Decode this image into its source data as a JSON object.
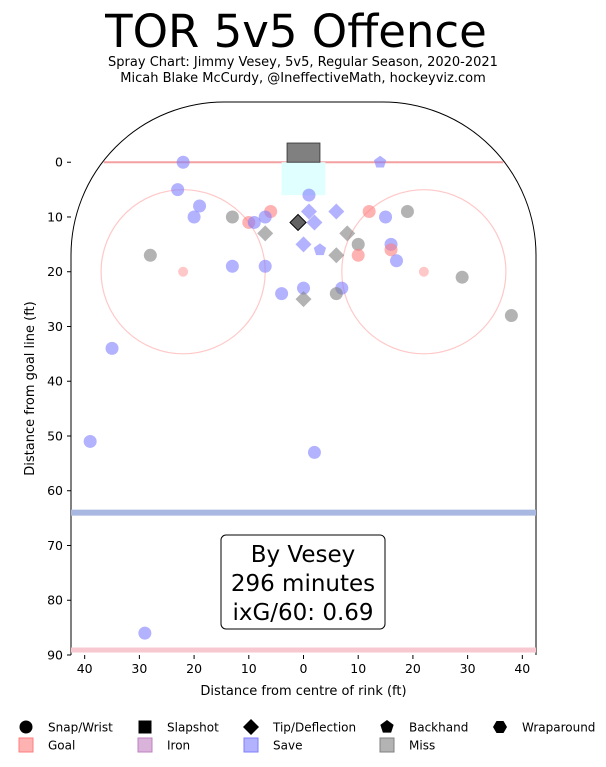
{
  "chart_data": {
    "type": "scatter",
    "title": "TOR 5v5 Offence",
    "subtitle_1": "Spray Chart: Jimmy Vesey, 5v5, Regular Season, 2020-2021",
    "subtitle_2": "Micah Blake McCurdy, @IneffectiveMath, hockeyviz.com",
    "xlabel": "Distance from centre of rink (ft)",
    "ylabel": "Distance from goal line (ft)",
    "xlim": [
      -42.5,
      42.5
    ],
    "ylim": [
      -11,
      90
    ],
    "x_ticks": [
      -40,
      -30,
      -20,
      -10,
      0,
      10,
      20,
      30,
      40
    ],
    "x_tick_labels": [
      "40",
      "30",
      "20",
      "10",
      "0",
      "10",
      "20",
      "30",
      "40"
    ],
    "y_ticks": [
      0,
      10,
      20,
      30,
      40,
      50,
      60,
      70,
      80,
      90
    ],
    "y_tick_labels": [
      "0",
      "10",
      "20",
      "30",
      "40",
      "50",
      "60",
      "70",
      "80",
      "90"
    ],
    "annotation": {
      "line1": "By Vesey",
      "line2": "296 minutes",
      "line3": "ixG/60: 0.69"
    },
    "legend": {
      "shapes": [
        {
          "key": "wrist",
          "label": "Snap/Wrist"
        },
        {
          "key": "slap",
          "label": "Slapshot"
        },
        {
          "key": "tip",
          "label": "Tip/Deflection"
        },
        {
          "key": "backhand",
          "label": "Backhand"
        },
        {
          "key": "wrap",
          "label": "Wraparound"
        }
      ],
      "outcomes": [
        {
          "key": "goal",
          "label": "Goal",
          "color": "#ff7f7f"
        },
        {
          "key": "iron",
          "label": "Iron",
          "color": "#c080c0"
        },
        {
          "key": "save",
          "label": "Save",
          "color": "#7f7fff"
        },
        {
          "key": "miss",
          "label": "Miss",
          "color": "#808080"
        }
      ]
    },
    "colors": {
      "goal": "#ff7f7f",
      "save": "#7f7fff",
      "miss": "#808080",
      "iron": "#c080c0",
      "goal_line": "#f4a0a0",
      "blue_line": "#a8b8e0",
      "circle": "#ffc8c8",
      "crease": "#e0ffff"
    },
    "shots": [
      {
        "x": -22,
        "y": 0,
        "shape": "wrist",
        "outcome": "save"
      },
      {
        "x": 14,
        "y": 0,
        "shape": "backhand",
        "outcome": "save"
      },
      {
        "x": -23,
        "y": 5,
        "shape": "wrist",
        "outcome": "save"
      },
      {
        "x": 1,
        "y": 6,
        "shape": "wrist",
        "outcome": "save"
      },
      {
        "x": -19,
        "y": 8,
        "shape": "wrist",
        "outcome": "save"
      },
      {
        "x": -20,
        "y": 10,
        "shape": "wrist",
        "outcome": "save"
      },
      {
        "x": -13,
        "y": 10,
        "shape": "wrist",
        "outcome": "miss"
      },
      {
        "x": -6,
        "y": 9,
        "shape": "wrist",
        "outcome": "goal"
      },
      {
        "x": -7,
        "y": 10,
        "shape": "wrist",
        "outcome": "save"
      },
      {
        "x": -10,
        "y": 11,
        "shape": "wrist",
        "outcome": "goal"
      },
      {
        "x": -9,
        "y": 11,
        "shape": "wrist",
        "outcome": "save"
      },
      {
        "x": 1,
        "y": 9,
        "shape": "tip",
        "outcome": "save"
      },
      {
        "x": -1,
        "y": 11,
        "shape": "tip",
        "outcome": "miss"
      },
      {
        "x": -1,
        "y": 11,
        "shape": "tip",
        "outcome": "slap"
      },
      {
        "x": 2,
        "y": 11,
        "shape": "tip",
        "outcome": "save"
      },
      {
        "x": 6,
        "y": 9,
        "shape": "tip",
        "outcome": "save"
      },
      {
        "x": 12,
        "y": 9,
        "shape": "wrist",
        "outcome": "goal"
      },
      {
        "x": 15,
        "y": 10,
        "shape": "wrist",
        "outcome": "save"
      },
      {
        "x": 19,
        "y": 9,
        "shape": "wrist",
        "outcome": "miss"
      },
      {
        "x": -7,
        "y": 13,
        "shape": "tip",
        "outcome": "miss"
      },
      {
        "x": 8,
        "y": 13,
        "shape": "tip",
        "outcome": "miss"
      },
      {
        "x": 0,
        "y": 15,
        "shape": "tip",
        "outcome": "save"
      },
      {
        "x": 3,
        "y": 16,
        "shape": "backhand",
        "outcome": "save"
      },
      {
        "x": 10,
        "y": 15,
        "shape": "wrist",
        "outcome": "miss"
      },
      {
        "x": 16,
        "y": 15,
        "shape": "wrist",
        "outcome": "save"
      },
      {
        "x": 16,
        "y": 16,
        "shape": "wrist",
        "outcome": "goal"
      },
      {
        "x": 6,
        "y": 17,
        "shape": "tip",
        "outcome": "miss"
      },
      {
        "x": 10,
        "y": 17,
        "shape": "wrist",
        "outcome": "goal"
      },
      {
        "x": 17,
        "y": 18,
        "shape": "wrist",
        "outcome": "save"
      },
      {
        "x": -28,
        "y": 17,
        "shape": "wrist",
        "outcome": "miss"
      },
      {
        "x": -13,
        "y": 19,
        "shape": "wrist",
        "outcome": "save"
      },
      {
        "x": -7,
        "y": 19,
        "shape": "wrist",
        "outcome": "save"
      },
      {
        "x": 29,
        "y": 21,
        "shape": "wrist",
        "outcome": "miss"
      },
      {
        "x": 0,
        "y": 23,
        "shape": "wrist",
        "outcome": "save"
      },
      {
        "x": 7,
        "y": 23,
        "shape": "wrist",
        "outcome": "save"
      },
      {
        "x": -4,
        "y": 24,
        "shape": "wrist",
        "outcome": "save"
      },
      {
        "x": 6,
        "y": 24,
        "shape": "wrist",
        "outcome": "miss"
      },
      {
        "x": 0,
        "y": 25,
        "shape": "tip",
        "outcome": "miss"
      },
      {
        "x": 38,
        "y": 28,
        "shape": "wrist",
        "outcome": "miss"
      },
      {
        "x": -35,
        "y": 34,
        "shape": "wrist",
        "outcome": "save"
      },
      {
        "x": -39,
        "y": 51,
        "shape": "wrist",
        "outcome": "save"
      },
      {
        "x": 2,
        "y": 53,
        "shape": "wrist",
        "outcome": "save"
      },
      {
        "x": -29,
        "y": 86,
        "shape": "wrist",
        "outcome": "save"
      }
    ]
  }
}
